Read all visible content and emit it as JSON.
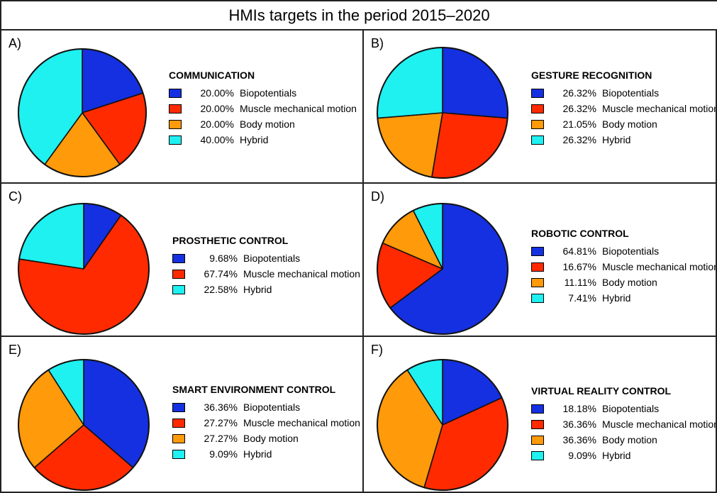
{
  "title": "HMIs targets in the period 2015–2020",
  "colors": {
    "Biopotentials": "#1530e0",
    "Muscle mechanical motion": "#ff2a00",
    "Body motion": "#ff9a0a",
    "Hybrid": "#1ff0f0"
  },
  "chart_data": [
    {
      "type": "pie",
      "panel": "A)",
      "title": "COMMUNICATION",
      "categories": [
        "Biopotentials",
        "Muscle mechanical motion",
        "Body motion",
        "Hybrid"
      ],
      "values": [
        20.0,
        20.0,
        20.0,
        40.0
      ],
      "labels": [
        "20.00%",
        "20.00%",
        "20.00%",
        "40.00%"
      ]
    },
    {
      "type": "pie",
      "panel": "B)",
      "title": "GESTURE RECOGNITION",
      "categories": [
        "Biopotentials",
        "Muscle mechanical motion",
        "Body motion",
        "Hybrid"
      ],
      "values": [
        26.32,
        26.32,
        21.05,
        26.32
      ],
      "labels": [
        "26.32%",
        "26.32%",
        "21.05%",
        "26.32%"
      ]
    },
    {
      "type": "pie",
      "panel": "C)",
      "title": "PROSTHETIC CONTROL",
      "categories": [
        "Biopotentials",
        "Muscle mechanical motion",
        "Hybrid"
      ],
      "values": [
        9.68,
        67.74,
        22.58
      ],
      "labels": [
        "9.68%",
        "67.74%",
        "22.58%"
      ]
    },
    {
      "type": "pie",
      "panel": "D)",
      "title": "ROBOTIC CONTROL",
      "categories": [
        "Biopotentials",
        "Muscle mechanical motion",
        "Body motion",
        "Hybrid"
      ],
      "values": [
        64.81,
        16.67,
        11.11,
        7.41
      ],
      "labels": [
        "64.81%",
        "16.67%",
        "11.11%",
        "7.41%"
      ]
    },
    {
      "type": "pie",
      "panel": "E)",
      "title": "SMART ENVIRONMENT CONTROL",
      "categories": [
        "Biopotentials",
        "Muscle mechanical motion",
        "Body motion",
        "Hybrid"
      ],
      "values": [
        36.36,
        27.27,
        27.27,
        9.09
      ],
      "labels": [
        "36.36%",
        "27.27%",
        "27.27%",
        "9.09%"
      ]
    },
    {
      "type": "pie",
      "panel": "F)",
      "title": "VIRTUAL REALITY CONTROL",
      "categories": [
        "Biopotentials",
        "Muscle mechanical motion",
        "Body motion",
        "Hybrid"
      ],
      "values": [
        18.18,
        36.36,
        36.36,
        9.09
      ],
      "labels": [
        "18.18%",
        "36.36%",
        "36.36%",
        "9.09%"
      ]
    }
  ]
}
